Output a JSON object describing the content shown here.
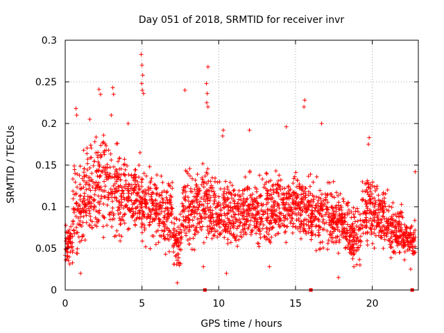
{
  "chart_data": {
    "type": "scatter",
    "title": "Day 051 of 2018, SRMTID for receiver invr",
    "xlabel": "GPS time / hours",
    "ylabel": "SRMTID / TECUs",
    "xlim": [
      0,
      23
    ],
    "ylim": [
      0,
      0.3
    ],
    "grid": true,
    "marker": "+",
    "color": "#ff0000",
    "x_ticks": [
      0,
      5,
      10,
      15,
      20
    ],
    "x_tick_labels": [
      "0",
      "5",
      "10",
      "15",
      "20"
    ],
    "y_ticks": [
      0,
      0.05,
      0.1,
      0.15,
      0.2,
      0.25,
      0.3
    ],
    "y_tick_labels": [
      "0",
      "0.05",
      "0.1",
      "0.15",
      "0.2",
      "0.25",
      "0.3"
    ],
    "zero_markers_x": [
      9.1,
      16.0,
      22.6
    ],
    "highlights": [
      [
        4.95,
        0.283
      ],
      [
        5.0,
        0.27
      ],
      [
        5.05,
        0.258
      ],
      [
        4.98,
        0.248
      ],
      [
        5.02,
        0.24
      ],
      [
        5.1,
        0.236
      ],
      [
        9.3,
        0.268
      ],
      [
        9.2,
        0.248
      ],
      [
        9.25,
        0.236
      ],
      [
        9.22,
        0.225
      ],
      [
        9.3,
        0.22
      ],
      [
        2.2,
        0.241
      ],
      [
        2.3,
        0.235
      ],
      [
        3.1,
        0.243
      ],
      [
        3.15,
        0.235
      ],
      [
        7.8,
        0.24
      ],
      [
        15.6,
        0.228
      ],
      [
        15.55,
        0.22
      ],
      [
        14.4,
        0.196
      ],
      [
        16.7,
        0.2
      ],
      [
        12.0,
        0.192
      ],
      [
        19.8,
        0.183
      ],
      [
        19.75,
        0.175
      ],
      [
        10.3,
        0.192
      ],
      [
        10.25,
        0.185
      ],
      [
        0.7,
        0.218
      ],
      [
        0.75,
        0.21
      ],
      [
        1.6,
        0.205
      ],
      [
        3.0,
        0.21
      ],
      [
        4.1,
        0.2
      ],
      [
        7.3,
        0.0085
      ],
      [
        1.0,
        0.02
      ],
      [
        9.0,
        0.028
      ],
      [
        10.5,
        0.02
      ],
      [
        13.3,
        0.028
      ],
      [
        17.8,
        0.015
      ],
      [
        18.8,
        0.028
      ],
      [
        19.2,
        0.03
      ],
      [
        22.8,
        0.142
      ],
      [
        22.5,
        0.025
      ]
    ],
    "bands": [
      {
        "x0": 0.0,
        "x1": 0.5,
        "lo": 0.025,
        "hi": 0.085
      },
      {
        "x0": 0.5,
        "x1": 1.2,
        "lo": 0.03,
        "hi": 0.17
      },
      {
        "x0": 1.2,
        "x1": 2.0,
        "lo": 0.04,
        "hi": 0.19
      },
      {
        "x0": 2.0,
        "x1": 3.0,
        "lo": 0.045,
        "hi": 0.2
      },
      {
        "x0": 3.0,
        "x1": 4.0,
        "lo": 0.04,
        "hi": 0.19
      },
      {
        "x0": 4.0,
        "x1": 5.0,
        "lo": 0.05,
        "hi": 0.18
      },
      {
        "x0": 5.0,
        "x1": 6.0,
        "lo": 0.04,
        "hi": 0.16
      },
      {
        "x0": 6.0,
        "x1": 7.0,
        "lo": 0.035,
        "hi": 0.15
      },
      {
        "x0": 7.0,
        "x1": 7.6,
        "lo": 0.02,
        "hi": 0.1
      },
      {
        "x0": 7.6,
        "x1": 8.5,
        "lo": 0.03,
        "hi": 0.16
      },
      {
        "x0": 8.5,
        "x1": 9.5,
        "lo": 0.04,
        "hi": 0.16
      },
      {
        "x0": 9.5,
        "x1": 10.5,
        "lo": 0.03,
        "hi": 0.15
      },
      {
        "x0": 10.5,
        "x1": 11.5,
        "lo": 0.035,
        "hi": 0.145
      },
      {
        "x0": 11.5,
        "x1": 12.5,
        "lo": 0.04,
        "hi": 0.15
      },
      {
        "x0": 12.5,
        "x1": 13.5,
        "lo": 0.035,
        "hi": 0.155
      },
      {
        "x0": 13.5,
        "x1": 14.5,
        "lo": 0.04,
        "hi": 0.16
      },
      {
        "x0": 14.5,
        "x1": 15.5,
        "lo": 0.05,
        "hi": 0.155
      },
      {
        "x0": 15.5,
        "x1": 16.5,
        "lo": 0.04,
        "hi": 0.15
      },
      {
        "x0": 16.5,
        "x1": 17.5,
        "lo": 0.035,
        "hi": 0.14
      },
      {
        "x0": 17.5,
        "x1": 18.5,
        "lo": 0.03,
        "hi": 0.13
      },
      {
        "x0": 18.5,
        "x1": 19.3,
        "lo": 0.025,
        "hi": 0.11
      },
      {
        "x0": 19.3,
        "x1": 20.0,
        "lo": 0.04,
        "hi": 0.16
      },
      {
        "x0": 20.0,
        "x1": 21.0,
        "lo": 0.035,
        "hi": 0.14
      },
      {
        "x0": 21.0,
        "x1": 22.0,
        "lo": 0.03,
        "hi": 0.11
      },
      {
        "x0": 22.0,
        "x1": 22.8,
        "lo": 0.03,
        "hi": 0.09
      }
    ]
  }
}
